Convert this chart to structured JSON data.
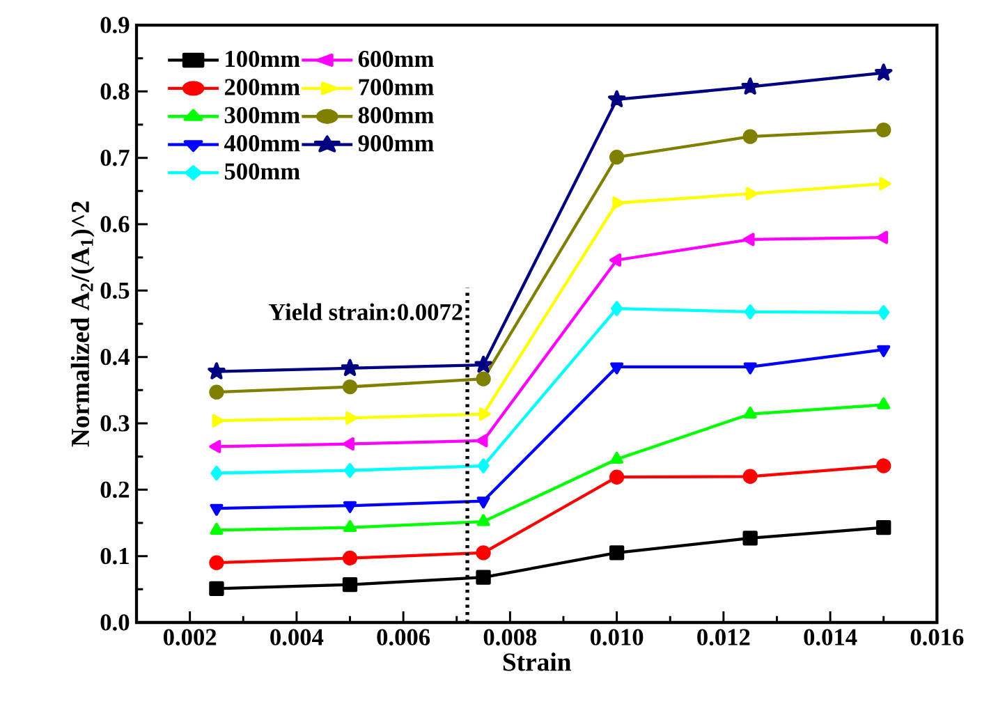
{
  "chart_data": {
    "type": "line",
    "xlabel": "Strain",
    "ylabel": "Normalized A$_{2}$/(A$_{1}$)^2",
    "x": [
      0.0025,
      0.005,
      0.0075,
      0.01,
      0.0125,
      0.015
    ],
    "xlim": [
      0.001,
      0.016
    ],
    "ylim": [
      0,
      0.9
    ],
    "xticks": [
      {
        "value": 0.002,
        "label": "0.002"
      },
      {
        "value": 0.004,
        "label": "0.004"
      },
      {
        "value": 0.006,
        "label": "0.006"
      },
      {
        "value": 0.008,
        "label": "0.008"
      },
      {
        "value": 0.01,
        "label": "0.010"
      },
      {
        "value": 0.012,
        "label": "0.012"
      },
      {
        "value": 0.014,
        "label": "0.014"
      },
      {
        "value": 0.016,
        "label": "0.016"
      }
    ],
    "yticks": [
      {
        "value": 0,
        "label": "0.0"
      },
      0.1,
      0.2,
      0.3,
      0.4,
      0.5,
      0.6,
      0.7,
      0.8,
      0.9
    ],
    "legend": "top left",
    "grid": false,
    "line_style": "solid",
    "series": [
      {
        "name": "100mm",
        "color": "#000000",
        "marker": "square",
        "values": [
          0.051,
          0.057,
          0.068,
          0.105,
          0.127,
          0.143
        ]
      },
      {
        "name": "200mm",
        "color": "#ff0000",
        "marker": "circle",
        "values": [
          0.09,
          0.097,
          0.105,
          0.219,
          0.22,
          0.236
        ]
      },
      {
        "name": "300mm",
        "color": "#00ff00",
        "marker": "triangle",
        "values": [
          0.139,
          0.143,
          0.152,
          0.246,
          0.314,
          0.328
        ]
      },
      {
        "name": "400mm",
        "color": "#0000ff",
        "marker": "triangle-down",
        "values": [
          0.172,
          0.176,
          0.183,
          0.385,
          0.385,
          0.411
        ]
      },
      {
        "name": "500mm",
        "color": "#00ffff",
        "marker": "diamond",
        "values": [
          0.225,
          0.229,
          0.236,
          0.473,
          0.468,
          0.467
        ]
      },
      {
        "name": "600mm",
        "color": "#ff00ff",
        "marker": "triangle-left",
        "values": [
          0.265,
          0.269,
          0.274,
          0.546,
          0.577,
          0.58
        ]
      },
      {
        "name": "700mm",
        "color": "#ffff00",
        "marker": "triangle-right",
        "values": [
          0.304,
          0.308,
          0.314,
          0.632,
          0.646,
          0.661
        ]
      },
      {
        "name": "800mm",
        "color": "#808000",
        "marker": "circle",
        "values": [
          0.347,
          0.355,
          0.367,
          0.701,
          0.732,
          0.742
        ]
      },
      {
        "name": "900mm",
        "color": "#000080",
        "marker": "star",
        "values": [
          0.378,
          0.383,
          0.388,
          0.788,
          0.807,
          0.828
        ]
      }
    ],
    "ref_lines": [
      {
        "axis": "x",
        "value": 0.0072,
        "label": "Yield strain:0.0072",
        "color": "#000000",
        "line_style": "dotted"
      }
    ]
  }
}
